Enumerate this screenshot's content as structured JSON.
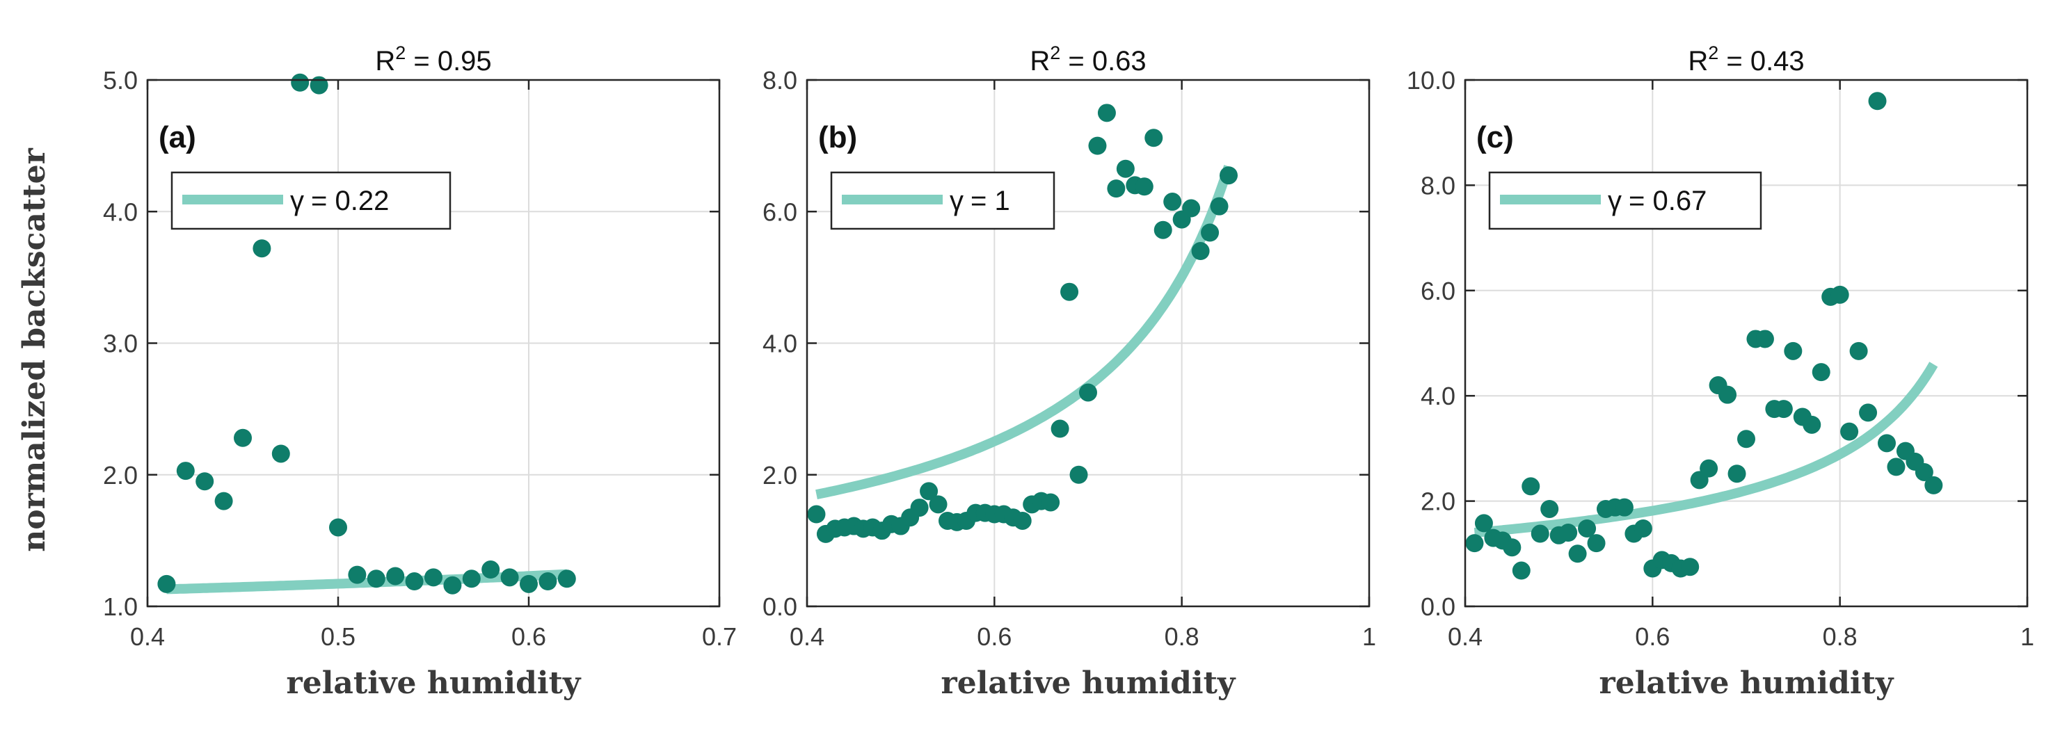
{
  "colors": {
    "points": "#0f7d6a",
    "fit": "#82cfc0",
    "grid": "#dcdcdc",
    "axis": "#262626"
  },
  "chart_data": [
    {
      "type": "scatter",
      "panel": "(a)",
      "title": "R^2 = 0.95",
      "title_base": "R",
      "title_sup": "2",
      "title_rest": " = 0.95",
      "xlabel": "relative humidity",
      "ylabel": "normalized backscatter",
      "xlim": [
        0.4,
        0.7
      ],
      "ylim": [
        1.0,
        5.0
      ],
      "xticks": [
        0.4,
        0.5,
        0.6,
        0.7
      ],
      "xticklabels": [
        "0.4",
        "0.5",
        "0.6",
        "0.7"
      ],
      "yticks": [
        1,
        2,
        3,
        4,
        5
      ],
      "yticklabels": [
        "1.0",
        "2.0",
        "3.0",
        "4.0",
        "5.0"
      ],
      "grid": true,
      "legend": {
        "position": "top-left",
        "label": "γ = 0.22",
        "symbol": "γ",
        "value": "= 0.22"
      },
      "fit": {
        "gamma": 0.22,
        "f_at_x0": 1.13,
        "x0": 0.41,
        "x_range": [
          0.41,
          0.62
        ]
      },
      "points": [
        [
          0.41,
          1.17
        ],
        [
          0.42,
          2.03
        ],
        [
          0.43,
          1.95
        ],
        [
          0.44,
          1.8
        ],
        [
          0.45,
          2.28
        ],
        [
          0.46,
          3.72
        ],
        [
          0.47,
          2.16
        ],
        [
          0.48,
          4.98
        ],
        [
          0.49,
          4.96
        ],
        [
          0.5,
          1.6
        ],
        [
          0.51,
          1.24
        ],
        [
          0.52,
          1.21
        ],
        [
          0.53,
          1.23
        ],
        [
          0.54,
          1.19
        ],
        [
          0.55,
          1.22
        ],
        [
          0.56,
          1.16
        ],
        [
          0.57,
          1.21
        ],
        [
          0.58,
          1.28
        ],
        [
          0.59,
          1.22
        ],
        [
          0.6,
          1.17
        ],
        [
          0.61,
          1.19
        ],
        [
          0.62,
          1.21
        ]
      ]
    },
    {
      "type": "scatter",
      "panel": "(b)",
      "title": "R^2 = 0.63",
      "title_base": "R",
      "title_sup": "2",
      "title_rest": " = 0.63",
      "xlabel": "relative humidity",
      "ylabel": "",
      "xlim": [
        0.4,
        1.0
      ],
      "ylim": [
        0.0,
        8.0
      ],
      "xticks": [
        0.4,
        0.6,
        0.8,
        1.0
      ],
      "xticklabels": [
        "0.4",
        "0.6",
        "0.8",
        "1"
      ],
      "yticks": [
        0,
        2,
        4,
        6,
        8
      ],
      "yticklabels": [
        "0.0",
        "2.0",
        "4.0",
        "6.0",
        "8.0"
      ],
      "grid": true,
      "legend": {
        "position": "top-left",
        "label": "γ = 1",
        "symbol": "γ",
        "value": "= 1"
      },
      "fit": {
        "gamma": 1.0,
        "f_at_x0": 1.7,
        "x0": 0.41,
        "x_range": [
          0.41,
          0.85
        ]
      },
      "points": [
        [
          0.41,
          1.4
        ],
        [
          0.42,
          1.1
        ],
        [
          0.43,
          1.18
        ],
        [
          0.44,
          1.2
        ],
        [
          0.45,
          1.22
        ],
        [
          0.46,
          1.18
        ],
        [
          0.47,
          1.2
        ],
        [
          0.48,
          1.15
        ],
        [
          0.49,
          1.25
        ],
        [
          0.5,
          1.22
        ],
        [
          0.51,
          1.35
        ],
        [
          0.52,
          1.5
        ],
        [
          0.53,
          1.75
        ],
        [
          0.54,
          1.55
        ],
        [
          0.55,
          1.3
        ],
        [
          0.56,
          1.28
        ],
        [
          0.57,
          1.3
        ],
        [
          0.58,
          1.42
        ],
        [
          0.59,
          1.42
        ],
        [
          0.6,
          1.4
        ],
        [
          0.61,
          1.4
        ],
        [
          0.62,
          1.35
        ],
        [
          0.63,
          1.3
        ],
        [
          0.64,
          1.55
        ],
        [
          0.65,
          1.6
        ],
        [
          0.66,
          1.58
        ],
        [
          0.67,
          2.7
        ],
        [
          0.68,
          4.78
        ],
        [
          0.69,
          2.0
        ],
        [
          0.7,
          3.25
        ],
        [
          0.71,
          7.0
        ],
        [
          0.72,
          7.5
        ],
        [
          0.73,
          6.35
        ],
        [
          0.74,
          6.65
        ],
        [
          0.75,
          6.4
        ],
        [
          0.76,
          6.38
        ],
        [
          0.77,
          7.12
        ],
        [
          0.78,
          5.72
        ],
        [
          0.79,
          6.15
        ],
        [
          0.8,
          5.88
        ],
        [
          0.81,
          6.05
        ],
        [
          0.82,
          5.4
        ],
        [
          0.83,
          5.68
        ],
        [
          0.84,
          6.08
        ],
        [
          0.85,
          6.55
        ]
      ]
    },
    {
      "type": "scatter",
      "panel": "(c)",
      "title": "R^2 = 0.43",
      "title_base": "R",
      "title_sup": "2",
      "title_rest": " = 0.43",
      "xlabel": "relative humidity",
      "ylabel": "",
      "xlim": [
        0.4,
        1.0
      ],
      "ylim": [
        0.0,
        10.0
      ],
      "xticks": [
        0.4,
        0.6,
        0.8,
        1.0
      ],
      "xticklabels": [
        "0.4",
        "0.6",
        "0.8",
        "1"
      ],
      "yticks": [
        0,
        2,
        4,
        6,
        8,
        10
      ],
      "yticklabels": [
        "0.0",
        "2.0",
        "4.0",
        "6.0",
        "8.0",
        "10.0"
      ],
      "grid": true,
      "legend": {
        "position": "top-left",
        "label": "γ = 0.67",
        "symbol": "γ",
        "value": "= 0.67"
      },
      "fit": {
        "gamma": 0.67,
        "f_at_x0": 1.4,
        "x0": 0.41,
        "x_range": [
          0.41,
          0.9
        ]
      },
      "points": [
        [
          0.41,
          1.2
        ],
        [
          0.42,
          1.58
        ],
        [
          0.43,
          1.3
        ],
        [
          0.44,
          1.25
        ],
        [
          0.45,
          1.12
        ],
        [
          0.46,
          0.68
        ],
        [
          0.47,
          2.28
        ],
        [
          0.48,
          1.38
        ],
        [
          0.49,
          1.85
        ],
        [
          0.5,
          1.35
        ],
        [
          0.51,
          1.4
        ],
        [
          0.52,
          1.0
        ],
        [
          0.53,
          1.48
        ],
        [
          0.54,
          1.2
        ],
        [
          0.55,
          1.85
        ],
        [
          0.56,
          1.88
        ],
        [
          0.57,
          1.88
        ],
        [
          0.58,
          1.38
        ],
        [
          0.59,
          1.48
        ],
        [
          0.6,
          0.72
        ],
        [
          0.61,
          0.88
        ],
        [
          0.62,
          0.82
        ],
        [
          0.63,
          0.72
        ],
        [
          0.64,
          0.75
        ],
        [
          0.65,
          2.4
        ],
        [
          0.66,
          2.62
        ],
        [
          0.67,
          4.2
        ],
        [
          0.68,
          4.02
        ],
        [
          0.69,
          2.52
        ],
        [
          0.7,
          3.18
        ],
        [
          0.71,
          5.08
        ],
        [
          0.72,
          5.08
        ],
        [
          0.73,
          3.75
        ],
        [
          0.74,
          3.75
        ],
        [
          0.75,
          4.85
        ],
        [
          0.76,
          3.6
        ],
        [
          0.77,
          3.45
        ],
        [
          0.78,
          4.45
        ],
        [
          0.79,
          5.88
        ],
        [
          0.8,
          5.92
        ],
        [
          0.81,
          3.32
        ],
        [
          0.82,
          4.85
        ],
        [
          0.83,
          3.68
        ],
        [
          0.84,
          9.6
        ],
        [
          0.85,
          3.1
        ],
        [
          0.86,
          2.65
        ],
        [
          0.87,
          2.95
        ],
        [
          0.88,
          2.75
        ],
        [
          0.89,
          2.55
        ],
        [
          0.9,
          2.3
        ]
      ]
    }
  ]
}
